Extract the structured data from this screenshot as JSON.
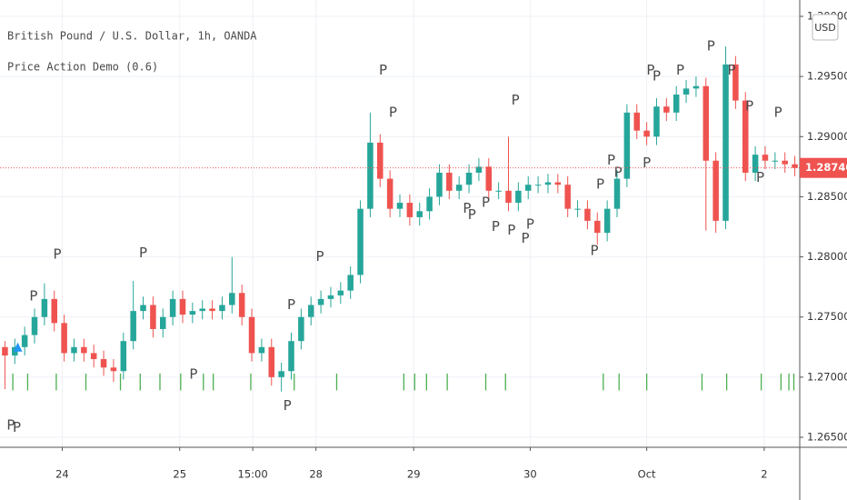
{
  "chart_data": {
    "type": "candlestick",
    "title": "British Pound / U.S. Dollar, 1h, OANDA",
    "subtitle": "Price Action Demo (0.6)",
    "currency": "USD",
    "up_color": "#26a69a",
    "down_color": "#ef5350",
    "grid": true,
    "xlim": [
      -0.5,
      80.5
    ],
    "ylim": [
      1.26417,
      1.30136
    ],
    "xticks": [
      {
        "value": 5.8,
        "label": "24"
      },
      {
        "value": 17.7,
        "label": "25"
      },
      {
        "value": 25.1,
        "label": "15:00"
      },
      {
        "value": 31.5,
        "label": "28"
      },
      {
        "value": 41.4,
        "label": "29"
      },
      {
        "value": 53.2,
        "label": "30"
      },
      {
        "value": 65.0,
        "label": "Oct"
      },
      {
        "value": 76.9,
        "label": "2"
      }
    ],
    "yticks": [
      {
        "value": 1.265,
        "label": "1.26500"
      },
      {
        "value": 1.27,
        "label": "1.27000"
      },
      {
        "value": 1.275,
        "label": "1.27500"
      },
      {
        "value": 1.28,
        "label": "1.28000"
      },
      {
        "value": 1.285,
        "label": "1.28500"
      },
      {
        "value": 1.29,
        "label": "1.29000"
      },
      {
        "value": 1.295,
        "label": "1.29500"
      },
      {
        "value": 1.3,
        "label": "1.30000"
      }
    ],
    "open": [
      1.2725,
      1.2718,
      1.2725,
      1.2735,
      1.275,
      1.2765,
      1.2745,
      1.272,
      1.2725,
      1.272,
      1.2715,
      1.2708,
      1.2705,
      1.273,
      1.2755,
      1.276,
      1.274,
      1.275,
      1.2765,
      1.2752,
      1.2755,
      1.2757,
      1.2755,
      1.276,
      1.277,
      1.275,
      1.272,
      1.2725,
      1.27,
      1.2705,
      1.273,
      1.275,
      1.276,
      1.2765,
      1.2768,
      1.2772,
      1.2785,
      1.284,
      1.2895,
      1.2865,
      1.284,
      1.2845,
      1.2833,
      1.2838,
      1.285,
      1.287,
      1.2855,
      1.286,
      1.287,
      1.2875,
      1.2855,
      1.2855,
      1.2845,
      1.2855,
      1.286,
      1.286,
      1.2862,
      1.286,
      1.284,
      1.284,
      1.283,
      1.282,
      1.284,
      1.2865,
      1.292,
      1.2905,
      1.29,
      1.2925,
      1.292,
      1.2935,
      1.294,
      1.2942,
      1.288,
      1.283,
      1.296,
      1.293,
      1.287,
      1.2885,
      1.288,
      1.288,
      1.2877
    ],
    "high": [
      1.273,
      1.2732,
      1.2742,
      1.2757,
      1.2778,
      1.2772,
      1.2752,
      1.2732,
      1.2732,
      1.2727,
      1.2722,
      1.2715,
      1.2737,
      1.278,
      1.2767,
      1.2767,
      1.2757,
      1.2772,
      1.2772,
      1.2762,
      1.2764,
      1.2764,
      1.2767,
      1.28,
      1.2777,
      1.2757,
      1.2732,
      1.2732,
      1.2712,
      1.2737,
      1.2757,
      1.2767,
      1.2772,
      1.2775,
      1.2779,
      1.2792,
      1.2847,
      1.292,
      1.2902,
      1.2872,
      1.2852,
      1.2852,
      1.2845,
      1.2857,
      1.2877,
      1.2877,
      1.2867,
      1.2877,
      1.2882,
      1.2882,
      1.2862,
      1.29,
      1.2862,
      1.2867,
      1.2867,
      1.2869,
      1.2869,
      1.2867,
      1.2847,
      1.2847,
      1.2837,
      1.2847,
      1.2872,
      1.2927,
      1.2927,
      1.2912,
      1.2932,
      1.2932,
      1.2942,
      1.2947,
      1.295,
      1.2949,
      1.2887,
      1.2975,
      1.2967,
      1.2937,
      1.2892,
      1.2892,
      1.2887,
      1.2887,
      1.2884
    ],
    "low": [
      1.269,
      1.2711,
      1.2718,
      1.2728,
      1.2743,
      1.2738,
      1.2713,
      1.2713,
      1.2713,
      1.2708,
      1.2701,
      1.2696,
      1.2698,
      1.2723,
      1.2748,
      1.2733,
      1.2733,
      1.2743,
      1.2745,
      1.2745,
      1.2748,
      1.2748,
      1.2748,
      1.2753,
      1.2743,
      1.2713,
      1.2713,
      1.2693,
      1.2688,
      1.2698,
      1.2723,
      1.2743,
      1.2753,
      1.2758,
      1.2761,
      1.2765,
      1.2778,
      1.2833,
      1.2858,
      1.2833,
      1.2833,
      1.2826,
      1.2826,
      1.2831,
      1.2843,
      1.2848,
      1.2848,
      1.2853,
      1.2863,
      1.2848,
      1.2848,
      1.2838,
      1.2838,
      1.2848,
      1.2853,
      1.2853,
      1.2853,
      1.2833,
      1.2833,
      1.2823,
      1.281,
      1.2813,
      1.2833,
      1.2858,
      1.2898,
      1.2893,
      1.2893,
      1.2913,
      1.2913,
      1.2928,
      1.2933,
      1.2822,
      1.282,
      1.2823,
      1.2923,
      1.2863,
      1.2863,
      1.2873,
      1.2873,
      1.287,
      1.2867
    ],
    "close": [
      1.2718,
      1.2725,
      1.2735,
      1.275,
      1.2765,
      1.2745,
      1.272,
      1.2725,
      1.272,
      1.2715,
      1.2708,
      1.2705,
      1.273,
      1.2755,
      1.276,
      1.274,
      1.275,
      1.2765,
      1.2752,
      1.2755,
      1.2757,
      1.2755,
      1.276,
      1.277,
      1.275,
      1.272,
      1.2725,
      1.27,
      1.2705,
      1.273,
      1.275,
      1.276,
      1.2765,
      1.2768,
      1.2772,
      1.2785,
      1.284,
      1.2895,
      1.2865,
      1.284,
      1.2845,
      1.2833,
      1.2838,
      1.285,
      1.287,
      1.2855,
      1.286,
      1.287,
      1.2875,
      1.2855,
      1.2855,
      1.2845,
      1.2855,
      1.286,
      1.286,
      1.2862,
      1.286,
      1.284,
      1.284,
      1.283,
      1.282,
      1.284,
      1.2865,
      1.292,
      1.2905,
      1.29,
      1.2925,
      1.292,
      1.2935,
      1.294,
      1.2942,
      1.288,
      1.283,
      1.296,
      1.293,
      1.287,
      1.2885,
      1.288,
      1.288,
      1.2877,
      1.2874
    ],
    "markers": [
      {
        "x": 2.9,
        "y": 1.2767,
        "label": "P",
        "color": "#ef5350"
      },
      {
        "x": 5.3,
        "y": 1.2802,
        "label": "P",
        "color": "#ef5350"
      },
      {
        "x": 14.0,
        "y": 1.2803,
        "label": "P",
        "color": "#ef5350"
      },
      {
        "x": 29.0,
        "y": 1.276,
        "label": "P",
        "color": "#ef5350"
      },
      {
        "x": 31.9,
        "y": 1.28,
        "label": "P",
        "color": "#ef5350"
      },
      {
        "x": 38.3,
        "y": 1.2955,
        "label": "P",
        "color": "#ef5350"
      },
      {
        "x": 39.3,
        "y": 1.292,
        "label": "P",
        "color": "#ef5350"
      },
      {
        "x": 51.7,
        "y": 1.293,
        "label": "P",
        "color": "#ef5350"
      },
      {
        "x": 60.3,
        "y": 1.286,
        "label": "P",
        "color": "#ef5350"
      },
      {
        "x": 61.4,
        "y": 1.288,
        "label": "P",
        "color": "#ef5350"
      },
      {
        "x": 62.1,
        "y": 1.287,
        "label": "P",
        "color": "#ef5350"
      },
      {
        "x": 65.4,
        "y": 1.2955,
        "label": "P",
        "color": "#ef5350"
      },
      {
        "x": 66.0,
        "y": 1.295,
        "label": "P",
        "color": "#ef5350"
      },
      {
        "x": 68.4,
        "y": 1.2955,
        "label": "P",
        "color": "#ef5350"
      },
      {
        "x": 71.5,
        "y": 1.2975,
        "label": "P",
        "color": "#ef5350"
      },
      {
        "x": 73.6,
        "y": 1.2955,
        "label": "P",
        "color": "#ef5350"
      },
      {
        "x": 75.4,
        "y": 1.2925,
        "label": "P",
        "color": "#ef5350"
      },
      {
        "x": 78.3,
        "y": 1.292,
        "label": "P",
        "color": "#ef5350"
      },
      {
        "x": 0.6,
        "y": 1.266,
        "label": "P",
        "color": "#2196c9"
      },
      {
        "x": 1.2,
        "y": 1.2658,
        "label": "P",
        "color": "#2196c9"
      },
      {
        "x": 19.1,
        "y": 1.2702,
        "label": "P",
        "color": "#2196c9"
      },
      {
        "x": 28.6,
        "y": 1.2676,
        "label": "P",
        "color": "#2196c9"
      },
      {
        "x": 46.8,
        "y": 1.284,
        "label": "P",
        "color": "#2196c9"
      },
      {
        "x": 47.3,
        "y": 1.2835,
        "label": "P",
        "color": "#2196c9"
      },
      {
        "x": 48.7,
        "y": 1.2845,
        "label": "P",
        "color": "#2196c9"
      },
      {
        "x": 49.7,
        "y": 1.2825,
        "label": "P",
        "color": "#2196c9"
      },
      {
        "x": 51.3,
        "y": 1.2822,
        "label": "P",
        "color": "#2196c9"
      },
      {
        "x": 52.7,
        "y": 1.2815,
        "label": "P",
        "color": "#2196c9"
      },
      {
        "x": 53.2,
        "y": 1.2827,
        "label": "P",
        "color": "#2196c9"
      },
      {
        "x": 59.7,
        "y": 1.2805,
        "label": "P",
        "color": "#2196c9"
      },
      {
        "x": 65.0,
        "y": 1.2878,
        "label": "P",
        "color": "#2196c9"
      },
      {
        "x": 76.5,
        "y": 1.2866,
        "label": "P",
        "color": "#2196c9"
      }
    ],
    "signals": {
      "x": [
        0.8,
        2.3,
        5.2,
        8.2,
        11.7,
        13.7,
        15.7,
        17.8,
        20.1,
        21.1,
        24.9,
        29.3,
        33.6,
        40.4,
        41.5,
        42.7,
        44.8,
        48.7,
        50.7,
        60.6,
        62.2,
        65.0,
        70.6,
        73.1,
        76.6,
        78.6,
        79.4,
        79.9
      ],
      "range": [
        1.2689,
        1.2703
      ],
      "color": "#4caf50"
    },
    "triangle": {
      "x": 1.3,
      "y": 1.2725,
      "color": "#2196f3"
    },
    "last_price": {
      "value": 1.2874,
      "label": "1.28740",
      "color": "#ef5350"
    }
  }
}
